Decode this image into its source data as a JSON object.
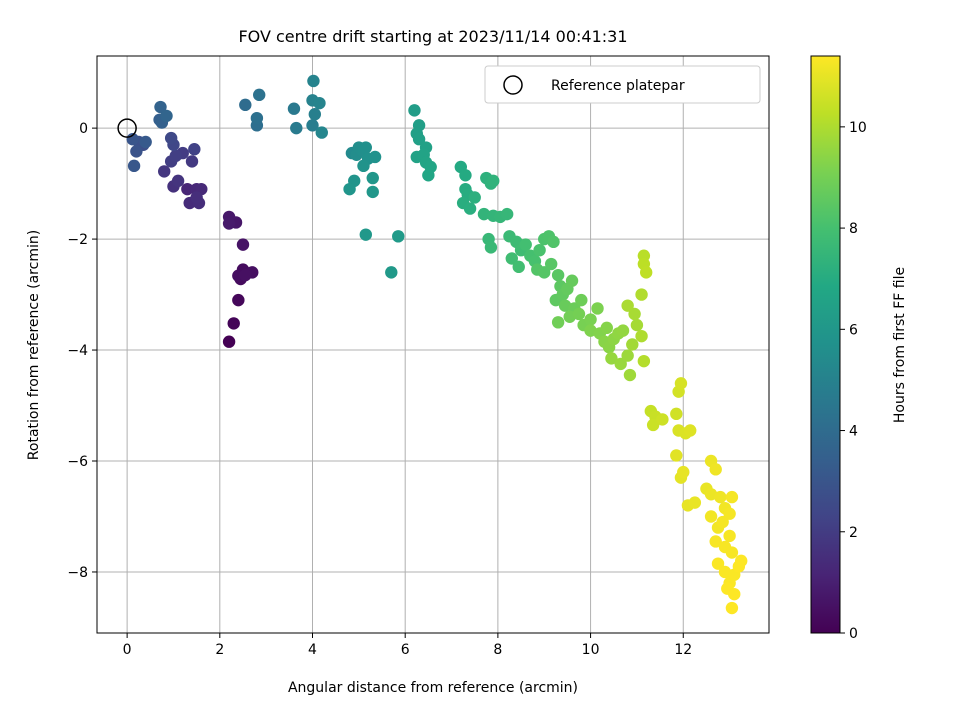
{
  "chart_data": {
    "type": "scatter",
    "title": "FOV centre drift starting at 2023/11/14 00:41:31",
    "xlabel": "Angular distance from reference (arcmin)",
    "ylabel": "Rotation from reference (arcmin)",
    "xlim": [
      -0.65,
      13.85
    ],
    "ylim": [
      -9.1,
      1.3
    ],
    "xticks": [
      0,
      2,
      4,
      6,
      8,
      10,
      12
    ],
    "yticks": [
      0,
      -2,
      -4,
      -6,
      -8
    ],
    "grid": true,
    "legend": {
      "position": "top-right",
      "entries": [
        "Reference platepar"
      ]
    },
    "colorbar": {
      "label": "Hours from first FF file",
      "min": 0,
      "max": 11.4,
      "ticks": [
        0,
        2,
        4,
        6,
        8,
        10
      ],
      "colormap": "viridis"
    },
    "reference_point": {
      "x": 0,
      "y": 0
    },
    "points": [
      {
        "x": 2.2,
        "y": -3.85,
        "t": 0.0
      },
      {
        "x": 2.3,
        "y": -3.52,
        "t": 0.1
      },
      {
        "x": 2.4,
        "y": -3.1,
        "t": 0.2
      },
      {
        "x": 2.45,
        "y": -2.72,
        "t": 0.3
      },
      {
        "x": 2.5,
        "y": -2.55,
        "t": 0.35
      },
      {
        "x": 2.4,
        "y": -2.66,
        "t": 0.4
      },
      {
        "x": 2.7,
        "y": -2.6,
        "t": 0.45
      },
      {
        "x": 2.55,
        "y": -2.65,
        "t": 0.5
      },
      {
        "x": 2.5,
        "y": -2.1,
        "t": 0.6
      },
      {
        "x": 2.35,
        "y": -1.7,
        "t": 0.7
      },
      {
        "x": 2.2,
        "y": -1.6,
        "t": 0.75
      },
      {
        "x": 2.2,
        "y": -1.72,
        "t": 0.8
      },
      {
        "x": 1.3,
        "y": -1.1,
        "t": 1.2
      },
      {
        "x": 1.5,
        "y": -1.1,
        "t": 1.3
      },
      {
        "x": 1.6,
        "y": -1.1,
        "t": 1.35
      },
      {
        "x": 1.35,
        "y": -1.35,
        "t": 1.4
      },
      {
        "x": 1.55,
        "y": -1.35,
        "t": 1.45
      },
      {
        "x": 1.5,
        "y": -1.25,
        "t": 1.5
      },
      {
        "x": 1.0,
        "y": -1.05,
        "t": 1.6
      },
      {
        "x": 1.1,
        "y": -0.95,
        "t": 1.7
      },
      {
        "x": 0.8,
        "y": -0.78,
        "t": 1.8
      },
      {
        "x": 1.4,
        "y": -0.6,
        "t": 1.9
      },
      {
        "x": 1.2,
        "y": -0.45,
        "t": 2.0
      },
      {
        "x": 0.95,
        "y": -0.6,
        "t": 2.05
      },
      {
        "x": 1.05,
        "y": -0.5,
        "t": 2.1
      },
      {
        "x": 1.45,
        "y": -0.38,
        "t": 2.2
      },
      {
        "x": 1.0,
        "y": -0.3,
        "t": 2.4
      },
      {
        "x": 0.95,
        "y": -0.18,
        "t": 2.5
      },
      {
        "x": 0.35,
        "y": -0.3,
        "t": 2.7
      },
      {
        "x": 0.25,
        "y": -0.25,
        "t": 2.8
      },
      {
        "x": 0.2,
        "y": -0.42,
        "t": 2.9
      },
      {
        "x": 0.12,
        "y": -0.2,
        "t": 3.0
      },
      {
        "x": 0.15,
        "y": -0.68,
        "t": 3.1
      },
      {
        "x": 0.4,
        "y": -0.25,
        "t": 3.2
      },
      {
        "x": 0.7,
        "y": 0.15,
        "t": 3.4
      },
      {
        "x": 0.75,
        "y": 0.1,
        "t": 3.5
      },
      {
        "x": 0.72,
        "y": 0.38,
        "t": 3.6
      },
      {
        "x": 0.85,
        "y": 0.22,
        "t": 3.7
      },
      {
        "x": 2.55,
        "y": 0.42,
        "t": 4.0
      },
      {
        "x": 2.8,
        "y": 0.05,
        "t": 4.1
      },
      {
        "x": 2.8,
        "y": 0.18,
        "t": 4.2
      },
      {
        "x": 2.85,
        "y": 0.6,
        "t": 4.3
      },
      {
        "x": 3.6,
        "y": 0.35,
        "t": 4.6
      },
      {
        "x": 3.65,
        "y": 0.0,
        "t": 4.7
      },
      {
        "x": 4.0,
        "y": 0.05,
        "t": 4.8
      },
      {
        "x": 4.05,
        "y": 0.25,
        "t": 4.9
      },
      {
        "x": 4.0,
        "y": 0.5,
        "t": 5.0
      },
      {
        "x": 4.02,
        "y": 0.85,
        "t": 5.05
      },
      {
        "x": 4.15,
        "y": 0.45,
        "t": 5.1
      },
      {
        "x": 4.2,
        "y": -0.08,
        "t": 5.2
      },
      {
        "x": 4.85,
        "y": -0.45,
        "t": 5.4
      },
      {
        "x": 4.95,
        "y": -0.48,
        "t": 5.5
      },
      {
        "x": 5.0,
        "y": -0.35,
        "t": 5.55
      },
      {
        "x": 5.1,
        "y": -0.42,
        "t": 5.6
      },
      {
        "x": 5.15,
        "y": -0.35,
        "t": 5.65
      },
      {
        "x": 5.2,
        "y": -0.55,
        "t": 5.7
      },
      {
        "x": 5.35,
        "y": -0.52,
        "t": 5.75
      },
      {
        "x": 5.1,
        "y": -0.68,
        "t": 5.8
      },
      {
        "x": 4.9,
        "y": -0.95,
        "t": 5.85
      },
      {
        "x": 4.8,
        "y": -1.1,
        "t": 5.9
      },
      {
        "x": 5.3,
        "y": -0.9,
        "t": 5.95
      },
      {
        "x": 5.3,
        "y": -1.15,
        "t": 6.0
      },
      {
        "x": 5.15,
        "y": -1.92,
        "t": 6.05
      },
      {
        "x": 5.7,
        "y": -2.6,
        "t": 6.1
      },
      {
        "x": 5.85,
        "y": -1.95,
        "t": 6.15
      },
      {
        "x": 6.2,
        "y": 0.32,
        "t": 6.3
      },
      {
        "x": 6.3,
        "y": 0.05,
        "t": 6.35
      },
      {
        "x": 6.25,
        "y": -0.1,
        "t": 6.4
      },
      {
        "x": 6.3,
        "y": -0.2,
        "t": 6.45
      },
      {
        "x": 6.45,
        "y": -0.35,
        "t": 6.5
      },
      {
        "x": 6.25,
        "y": -0.52,
        "t": 6.55
      },
      {
        "x": 6.4,
        "y": -0.48,
        "t": 6.6
      },
      {
        "x": 6.45,
        "y": -0.62,
        "t": 6.65
      },
      {
        "x": 6.55,
        "y": -0.7,
        "t": 6.7
      },
      {
        "x": 6.5,
        "y": -0.85,
        "t": 6.75
      },
      {
        "x": 7.2,
        "y": -0.7,
        "t": 6.9
      },
      {
        "x": 7.3,
        "y": -0.85,
        "t": 6.95
      },
      {
        "x": 7.3,
        "y": -1.1,
        "t": 7.0
      },
      {
        "x": 7.35,
        "y": -1.2,
        "t": 7.05
      },
      {
        "x": 7.25,
        "y": -1.35,
        "t": 7.1
      },
      {
        "x": 7.4,
        "y": -1.45,
        "t": 7.15
      },
      {
        "x": 7.5,
        "y": -1.25,
        "t": 7.2
      },
      {
        "x": 7.75,
        "y": -0.9,
        "t": 7.25
      },
      {
        "x": 7.85,
        "y": -1.0,
        "t": 7.3
      },
      {
        "x": 7.9,
        "y": -0.95,
        "t": 7.35
      },
      {
        "x": 7.7,
        "y": -1.55,
        "t": 7.4
      },
      {
        "x": 7.9,
        "y": -1.58,
        "t": 7.45
      },
      {
        "x": 8.05,
        "y": -1.6,
        "t": 7.5
      },
      {
        "x": 8.2,
        "y": -1.55,
        "t": 7.55
      },
      {
        "x": 7.8,
        "y": -2.0,
        "t": 7.6
      },
      {
        "x": 7.85,
        "y": -2.15,
        "t": 7.65
      },
      {
        "x": 8.25,
        "y": -1.95,
        "t": 7.7
      },
      {
        "x": 8.4,
        "y": -2.05,
        "t": 7.75
      },
      {
        "x": 8.5,
        "y": -2.2,
        "t": 7.8
      },
      {
        "x": 8.3,
        "y": -2.35,
        "t": 7.85
      },
      {
        "x": 8.45,
        "y": -2.5,
        "t": 7.9
      },
      {
        "x": 8.6,
        "y": -2.1,
        "t": 7.95
      },
      {
        "x": 8.7,
        "y": -2.3,
        "t": 8.0
      },
      {
        "x": 8.8,
        "y": -2.4,
        "t": 8.05
      },
      {
        "x": 8.9,
        "y": -2.2,
        "t": 8.1
      },
      {
        "x": 9.0,
        "y": -2.0,
        "t": 8.15
      },
      {
        "x": 9.1,
        "y": -1.95,
        "t": 8.2
      },
      {
        "x": 9.2,
        "y": -2.05,
        "t": 8.25
      },
      {
        "x": 8.85,
        "y": -2.55,
        "t": 8.3
      },
      {
        "x": 9.0,
        "y": -2.6,
        "t": 8.35
      },
      {
        "x": 9.15,
        "y": -2.45,
        "t": 8.4
      },
      {
        "x": 9.3,
        "y": -2.65,
        "t": 8.45
      },
      {
        "x": 9.35,
        "y": -2.85,
        "t": 8.5
      },
      {
        "x": 9.25,
        "y": -3.1,
        "t": 8.55
      },
      {
        "x": 9.4,
        "y": -3.0,
        "t": 8.6
      },
      {
        "x": 9.5,
        "y": -2.9,
        "t": 8.65
      },
      {
        "x": 9.6,
        "y": -2.75,
        "t": 8.7
      },
      {
        "x": 9.45,
        "y": -3.2,
        "t": 8.75
      },
      {
        "x": 9.65,
        "y": -3.25,
        "t": 8.8
      },
      {
        "x": 9.8,
        "y": -3.1,
        "t": 8.85
      },
      {
        "x": 9.3,
        "y": -3.5,
        "t": 8.9
      },
      {
        "x": 9.55,
        "y": -3.4,
        "t": 8.95
      },
      {
        "x": 9.75,
        "y": -3.35,
        "t": 9.0
      },
      {
        "x": 9.85,
        "y": -3.55,
        "t": 9.05
      },
      {
        "x": 10.0,
        "y": -3.45,
        "t": 9.1
      },
      {
        "x": 10.15,
        "y": -3.25,
        "t": 9.15
      },
      {
        "x": 10.0,
        "y": -3.65,
        "t": 9.2
      },
      {
        "x": 10.2,
        "y": -3.7,
        "t": 9.25
      },
      {
        "x": 10.35,
        "y": -3.6,
        "t": 9.3
      },
      {
        "x": 10.3,
        "y": -3.85,
        "t": 9.35
      },
      {
        "x": 10.4,
        "y": -3.95,
        "t": 9.4
      },
      {
        "x": 10.5,
        "y": -3.8,
        "t": 9.45
      },
      {
        "x": 10.6,
        "y": -3.7,
        "t": 9.5
      },
      {
        "x": 10.7,
        "y": -3.65,
        "t": 9.55
      },
      {
        "x": 10.45,
        "y": -4.15,
        "t": 9.6
      },
      {
        "x": 10.65,
        "y": -4.25,
        "t": 9.65
      },
      {
        "x": 10.8,
        "y": -4.1,
        "t": 9.7
      },
      {
        "x": 10.85,
        "y": -4.45,
        "t": 9.75
      },
      {
        "x": 10.9,
        "y": -3.9,
        "t": 9.8
      },
      {
        "x": 11.0,
        "y": -3.55,
        "t": 9.85
      },
      {
        "x": 10.95,
        "y": -3.35,
        "t": 9.9
      },
      {
        "x": 10.8,
        "y": -3.2,
        "t": 9.95
      },
      {
        "x": 11.1,
        "y": -3.75,
        "t": 10.0
      },
      {
        "x": 11.1,
        "y": -3.0,
        "t": 10.05
      },
      {
        "x": 11.15,
        "y": -4.2,
        "t": 10.1
      },
      {
        "x": 11.15,
        "y": -2.3,
        "t": 10.2
      },
      {
        "x": 11.15,
        "y": -2.45,
        "t": 10.25
      },
      {
        "x": 11.2,
        "y": -2.6,
        "t": 10.3
      },
      {
        "x": 11.3,
        "y": -5.1,
        "t": 10.4
      },
      {
        "x": 11.4,
        "y": -5.2,
        "t": 10.45
      },
      {
        "x": 11.35,
        "y": -5.35,
        "t": 10.5
      },
      {
        "x": 11.55,
        "y": -5.25,
        "t": 10.55
      },
      {
        "x": 11.85,
        "y": -5.15,
        "t": 10.6
      },
      {
        "x": 11.9,
        "y": -4.75,
        "t": 10.65
      },
      {
        "x": 11.95,
        "y": -4.6,
        "t": 10.7
      },
      {
        "x": 11.9,
        "y": -5.45,
        "t": 10.75
      },
      {
        "x": 12.05,
        "y": -5.5,
        "t": 10.8
      },
      {
        "x": 12.15,
        "y": -5.45,
        "t": 10.85
      },
      {
        "x": 11.85,
        "y": -5.9,
        "t": 10.9
      },
      {
        "x": 11.95,
        "y": -6.3,
        "t": 10.95
      },
      {
        "x": 12.0,
        "y": -6.2,
        "t": 11.0
      },
      {
        "x": 12.1,
        "y": -6.8,
        "t": 11.0
      },
      {
        "x": 12.25,
        "y": -6.75,
        "t": 11.05
      },
      {
        "x": 12.5,
        "y": -6.5,
        "t": 11.05
      },
      {
        "x": 12.6,
        "y": -6.6,
        "t": 11.1
      },
      {
        "x": 12.6,
        "y": -6.0,
        "t": 11.1
      },
      {
        "x": 12.7,
        "y": -6.15,
        "t": 11.15
      },
      {
        "x": 12.8,
        "y": -6.65,
        "t": 11.15
      },
      {
        "x": 12.9,
        "y": -6.85,
        "t": 11.2
      },
      {
        "x": 12.6,
        "y": -7.0,
        "t": 11.2
      },
      {
        "x": 12.75,
        "y": -7.2,
        "t": 11.2
      },
      {
        "x": 12.85,
        "y": -7.1,
        "t": 11.25
      },
      {
        "x": 13.0,
        "y": -6.95,
        "t": 11.25
      },
      {
        "x": 13.05,
        "y": -6.65,
        "t": 11.25
      },
      {
        "x": 12.7,
        "y": -7.45,
        "t": 11.3
      },
      {
        "x": 12.9,
        "y": -7.55,
        "t": 11.3
      },
      {
        "x": 13.0,
        "y": -7.35,
        "t": 11.3
      },
      {
        "x": 13.05,
        "y": -7.65,
        "t": 11.3
      },
      {
        "x": 12.75,
        "y": -7.85,
        "t": 11.35
      },
      {
        "x": 12.9,
        "y": -8.0,
        "t": 11.35
      },
      {
        "x": 13.0,
        "y": -8.2,
        "t": 11.35
      },
      {
        "x": 13.1,
        "y": -8.05,
        "t": 11.35
      },
      {
        "x": 12.95,
        "y": -8.3,
        "t": 11.4
      },
      {
        "x": 13.1,
        "y": -8.4,
        "t": 11.4
      },
      {
        "x": 13.2,
        "y": -7.9,
        "t": 11.4
      },
      {
        "x": 13.25,
        "y": -7.8,
        "t": 11.4
      },
      {
        "x": 13.05,
        "y": -8.65,
        "t": 11.4
      }
    ]
  }
}
